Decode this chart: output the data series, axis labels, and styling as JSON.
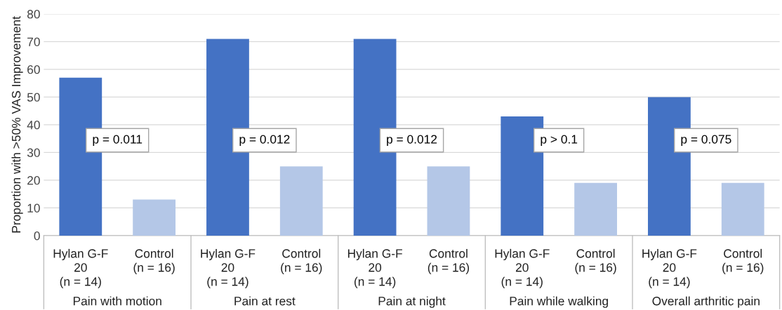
{
  "chart_data": {
    "type": "bar",
    "ylabel": "Proportion with >50% VAS Improvement",
    "categories": [
      "Pain with motion",
      "Pain at rest",
      "Pain at night",
      "Pain while walking",
      "Overall arthritic pain"
    ],
    "series": [
      {
        "name": "Hylan G-F\n20\n(n = 14)",
        "color": "#4472c4",
        "values": [
          57,
          71,
          71,
          43,
          50
        ]
      },
      {
        "name": "Control\n(n = 16)",
        "color": "#b4c7e7",
        "values": [
          13,
          25,
          25,
          19,
          19
        ]
      }
    ],
    "ylim": [
      0,
      80
    ],
    "yticks": [
      0,
      10,
      20,
      30,
      40,
      50,
      60,
      70,
      80
    ],
    "grid": "y",
    "legend": false,
    "annotations": [
      "p = 0.011",
      "p = 0.012",
      "p = 0.012",
      "p > 0.1",
      "p = 0.075"
    ]
  }
}
